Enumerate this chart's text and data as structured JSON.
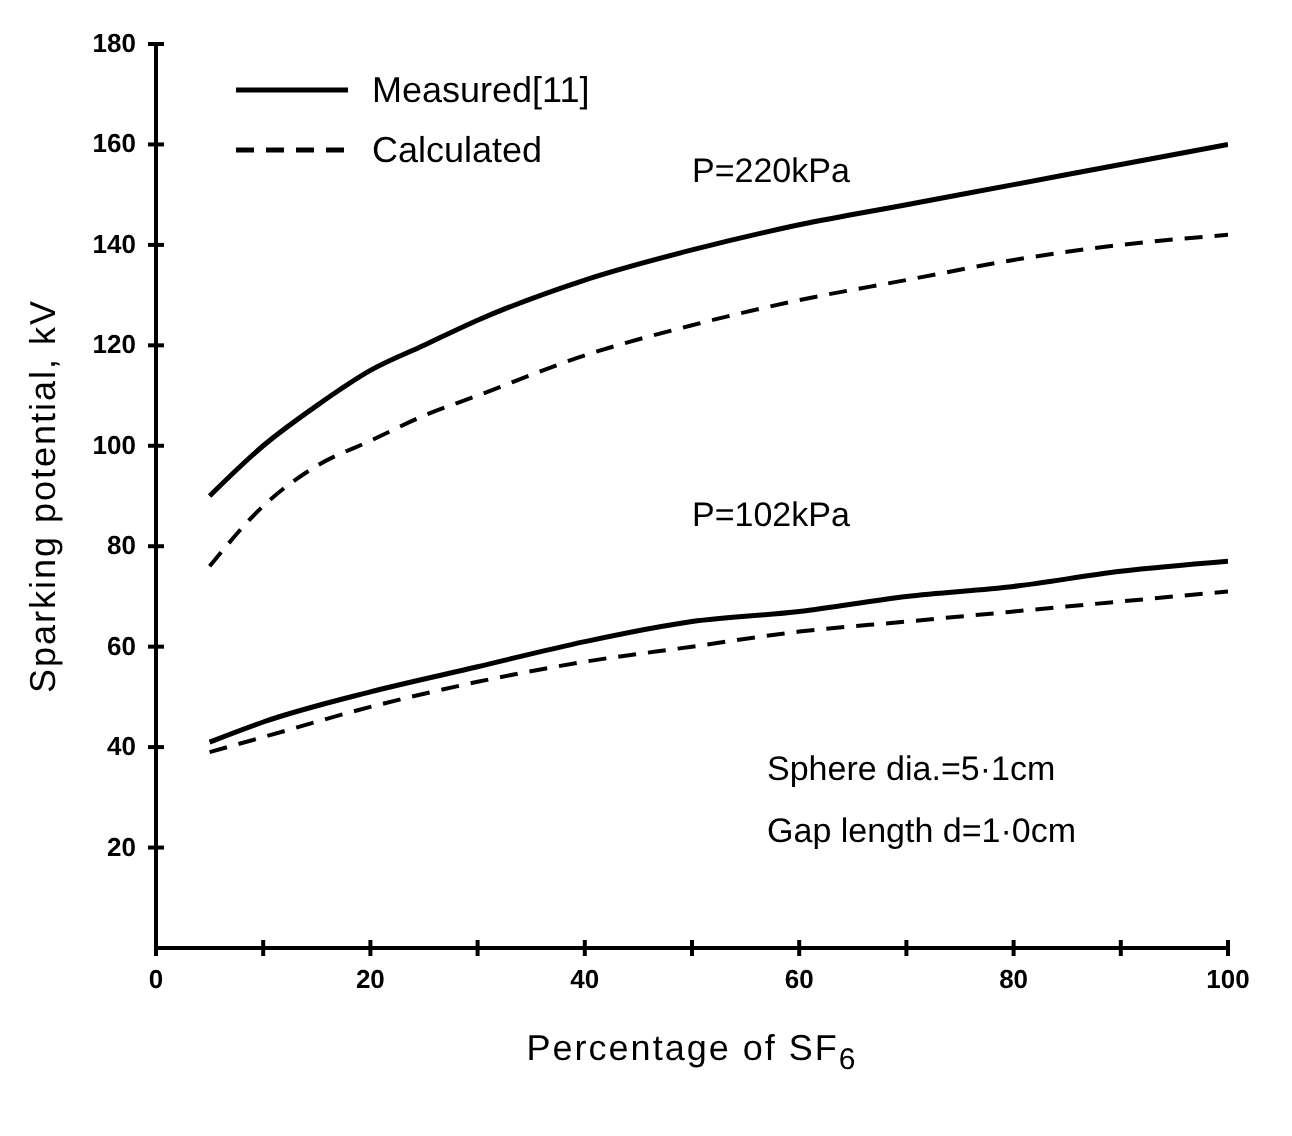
{
  "chart_data": {
    "type": "line",
    "xlabel": "Percentage of SF$_{6}$",
    "ylabel": "Sparking potential, kV",
    "xlim": [
      0,
      100
    ],
    "ylim": [
      0,
      180
    ],
    "xticks": [
      0,
      {
        "value": 10,
        "label": null
      },
      20,
      {
        "value": 30,
        "label": null
      },
      40,
      {
        "value": 50,
        "label": null
      },
      60,
      {
        "value": 70,
        "label": null
      },
      80,
      {
        "value": 90,
        "label": null
      },
      100
    ],
    "yticks": [
      20,
      40,
      60,
      80,
      100,
      120,
      140,
      160,
      180
    ],
    "grid": false,
    "legend": "top left",
    "marker": "none",
    "series": [
      {
        "name": "Measured[11]",
        "color": "#000000",
        "line_style": "solid",
        "x": [
          5,
          10,
          15,
          20,
          25,
          30,
          40,
          50,
          60,
          70,
          80,
          90,
          100
        ],
        "values": [
          90,
          100,
          108,
          115,
          120,
          125,
          133,
          139,
          144,
          148,
          152,
          156,
          160
        ]
      },
      {
        "name": "Calculated",
        "color": "#000000",
        "line_style": "dashed",
        "x": [
          5,
          10,
          15,
          20,
          25,
          30,
          40,
          50,
          60,
          70,
          80,
          90,
          100
        ],
        "values": [
          76,
          88,
          96,
          101,
          106,
          110,
          118,
          124,
          129,
          133,
          137,
          140,
          142
        ]
      },
      {
        "color": "#000000",
        "line_style": "solid",
        "x": [
          5,
          10,
          20,
          30,
          40,
          50,
          60,
          70,
          80,
          90,
          100
        ],
        "values": [
          41,
          45,
          51,
          56,
          61,
          65,
          67,
          70,
          72,
          75,
          77
        ]
      },
      {
        "color": "#000000",
        "line_style": "dashed",
        "x": [
          5,
          10,
          20,
          30,
          40,
          50,
          60,
          70,
          80,
          90,
          100
        ],
        "values": [
          39,
          42,
          48,
          53,
          57,
          60,
          63,
          65,
          67,
          69,
          71
        ]
      }
    ],
    "annotations": [
      "P=220kPa",
      "P=102kPa",
      "Sphere dia.=5·1cm",
      "Gap length d=1·0cm"
    ]
  }
}
